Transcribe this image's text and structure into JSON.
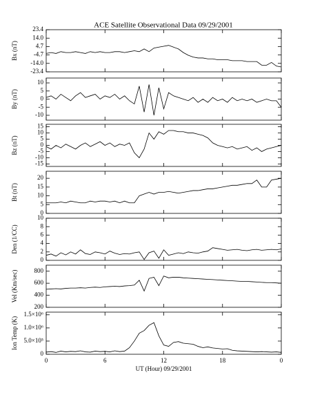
{
  "chart_data": [
    {
      "type": "line",
      "title": "ACE Satellite Observational Data   09/29/2001",
      "ylabel": "Bx (nT)",
      "color": "#000000",
      "x": [
        0,
        0.5,
        1,
        1.5,
        2,
        2.5,
        3,
        3.5,
        4,
        4.5,
        5,
        5.5,
        6,
        6.5,
        7,
        7.5,
        8,
        8.5,
        9,
        9.5,
        10,
        10.5,
        11,
        11.5,
        12,
        12.5,
        13,
        13.5,
        14,
        14.5,
        15,
        15.5,
        16,
        16.5,
        17,
        17.5,
        18,
        18.5,
        19,
        19.5,
        20,
        20.5,
        21,
        21.5,
        22,
        22.5,
        23,
        23.5,
        24
      ],
      "values": [
        -3,
        -2,
        -3,
        -1,
        -2,
        -2,
        -1,
        -2,
        -3,
        -1,
        -2,
        -1,
        -2,
        -2,
        -1,
        -1,
        -2,
        -1,
        0,
        -1,
        2,
        -1,
        3,
        4,
        5,
        6,
        4,
        2,
        -2,
        -5,
        -7,
        -8,
        -8,
        -9,
        -9,
        -10,
        -10,
        -10,
        -11,
        -11,
        -11,
        -12,
        -12,
        -12,
        -16,
        -16,
        -13,
        -17,
        -18
      ],
      "ylim": [
        -23.4,
        23.4
      ],
      "yticks": [
        23.4,
        {
          "value": 14,
          "label": "14.0"
        },
        4.7,
        -4.7,
        {
          "value": -14,
          "label": "-14.0"
        },
        -23.4
      ]
    },
    {
      "type": "line",
      "ylabel": "By (nT)",
      "color": "#000000",
      "x": [
        0,
        0.5,
        1,
        1.5,
        2,
        2.5,
        3,
        3.5,
        4,
        4.5,
        5,
        5.5,
        6,
        6.5,
        7,
        7.5,
        8,
        8.5,
        9,
        9.5,
        10,
        10.5,
        11,
        11.5,
        12,
        12.5,
        13,
        13.5,
        14,
        14.5,
        15,
        15.5,
        16,
        16.5,
        17,
        17.5,
        18,
        18.5,
        19,
        19.5,
        20,
        20.5,
        21,
        21.5,
        22,
        22.5,
        23,
        23.5,
        24
      ],
      "values": [
        1,
        2,
        0,
        3,
        1,
        -1,
        2,
        4,
        1,
        2,
        3,
        0,
        2,
        1,
        3,
        0,
        2,
        -1,
        -3,
        8,
        -8,
        9,
        -10,
        7,
        -6,
        4,
        2,
        1,
        0,
        -1,
        1,
        -2,
        0,
        -2,
        1,
        -1,
        0,
        -2,
        1,
        -1,
        0,
        -1,
        0,
        -2,
        -1,
        0,
        -1,
        -1,
        -5
      ],
      "ylim": [
        -13,
        13
      ],
      "yticks": [
        10,
        5,
        0,
        -5,
        -10
      ]
    },
    {
      "type": "line",
      "ylabel": "Bz (nT)",
      "color": "#000000",
      "x": [
        0,
        0.5,
        1,
        1.5,
        2,
        2.5,
        3,
        3.5,
        4,
        4.5,
        5,
        5.5,
        6,
        6.5,
        7,
        7.5,
        8,
        8.5,
        9,
        9.5,
        10,
        10.5,
        11,
        11.5,
        12,
        12.5,
        13,
        13.5,
        14,
        14.5,
        15,
        15.5,
        16,
        16.5,
        17,
        17.5,
        18,
        18.5,
        19,
        19.5,
        20,
        20.5,
        21,
        21.5,
        22,
        22.5,
        23,
        23.5,
        24
      ],
      "values": [
        -1,
        -3,
        0,
        -2,
        1,
        -1,
        -3,
        0,
        2,
        -1,
        1,
        3,
        0,
        2,
        -1,
        1,
        0,
        2,
        -6,
        -10,
        -3,
        10,
        5,
        11,
        9,
        12,
        12,
        11,
        11,
        10,
        10,
        9,
        8,
        6,
        2,
        0,
        -1,
        -2,
        -1,
        -3,
        -2,
        -1,
        -4,
        -2,
        -5,
        -3,
        -2,
        -1,
        0
      ],
      "ylim": [
        -17,
        17
      ],
      "yticks": [
        15,
        10,
        5,
        0,
        -5,
        -10,
        -15
      ]
    },
    {
      "type": "line",
      "ylabel": "Bt (nT)",
      "color": "#000000",
      "x": [
        0,
        0.5,
        1,
        1.5,
        2,
        2.5,
        3,
        3.5,
        4,
        4.5,
        5,
        5.5,
        6,
        6.5,
        7,
        7.5,
        8,
        8.5,
        9,
        9.5,
        10,
        10.5,
        11,
        11.5,
        12,
        12.5,
        13,
        13.5,
        14,
        14.5,
        15,
        15.5,
        16,
        16.5,
        17,
        17.5,
        18,
        18.5,
        19,
        19.5,
        20,
        20.5,
        21,
        21.5,
        22,
        22.5,
        23,
        23.5,
        24
      ],
      "values": [
        6,
        6,
        6,
        6.5,
        6,
        7,
        6.5,
        6,
        6,
        7,
        6.5,
        7,
        7,
        6.5,
        7,
        6,
        7,
        6,
        6,
        10,
        11,
        12,
        11,
        12,
        12,
        12.5,
        12,
        11.5,
        12,
        12.5,
        13,
        13,
        13.5,
        14,
        14,
        14.5,
        15,
        15.5,
        16,
        16,
        16.5,
        17,
        17,
        19,
        15,
        15,
        19,
        19.5,
        20
      ],
      "ylim": [
        0,
        24
      ],
      "yticks": [
        0,
        5,
        10,
        15,
        20
      ]
    },
    {
      "type": "line",
      "ylabel": "Den (1/CC)",
      "color": "#000000",
      "x": [
        0,
        0.5,
        1,
        1.5,
        2,
        2.5,
        3,
        3.5,
        4,
        4.5,
        5,
        5.5,
        6,
        6.5,
        7,
        7.5,
        8,
        8.5,
        9,
        9.5,
        10,
        10.5,
        11,
        11.5,
        12,
        12.5,
        13,
        13.5,
        14,
        14.5,
        15,
        15.5,
        16,
        16.5,
        17,
        17.5,
        18,
        18.5,
        19,
        19.5,
        20,
        20.5,
        21,
        21.5,
        22,
        22.5,
        23,
        23.5,
        24
      ],
      "values": [
        1.2,
        1.5,
        1,
        1.8,
        1.3,
        2,
        1.5,
        2.5,
        1.6,
        1.4,
        2,
        1.8,
        1.5,
        2.2,
        1.7,
        1.4,
        1.6,
        1.5,
        1.8,
        2,
        0.2,
        1.8,
        2.2,
        0.5,
        2.5,
        1.2,
        1.5,
        1.8,
        1.6,
        2,
        1.8,
        1.7,
        2,
        2.2,
        3,
        2.8,
        2.6,
        2.4,
        2.5,
        2.6,
        2.4,
        2.3,
        2.5,
        2.6,
        2.4,
        2.5,
        2.6,
        2.5,
        2.7
      ],
      "ylim": [
        0,
        10
      ],
      "yticks": [
        0,
        2,
        4,
        6,
        8,
        10
      ]
    },
    {
      "type": "line",
      "ylabel": "Vel (Km/sec)",
      "color": "#000000",
      "x": [
        0,
        0.5,
        1,
        1.5,
        2,
        2.5,
        3,
        3.5,
        4,
        4.5,
        5,
        5.5,
        6,
        6.5,
        7,
        7.5,
        8,
        8.5,
        9,
        9.5,
        10,
        10.5,
        11,
        11.5,
        12,
        12.5,
        13,
        13.5,
        14,
        14.5,
        15,
        15.5,
        16,
        16.5,
        17,
        17.5,
        18,
        18.5,
        19,
        19.5,
        20,
        20.5,
        21,
        21.5,
        22,
        22.5,
        23,
        23.5,
        24
      ],
      "values": [
        500,
        505,
        510,
        505,
        515,
        520,
        520,
        525,
        520,
        530,
        535,
        530,
        540,
        545,
        550,
        545,
        555,
        560,
        570,
        650,
        470,
        680,
        700,
        560,
        720,
        690,
        700,
        700,
        690,
        685,
        680,
        675,
        670,
        665,
        660,
        655,
        650,
        645,
        640,
        635,
        630,
        630,
        625,
        620,
        615,
        610,
        610,
        605,
        600
      ],
      "ylim": [
        200,
        900
      ],
      "yticks": [
        200,
        400,
        600,
        800
      ]
    },
    {
      "type": "line",
      "ylabel": "Ion Temp (K)",
      "xlabel": "UT (Hour)  09/29/2001",
      "color": "#000000",
      "x": [
        0,
        0.5,
        1,
        1.5,
        2,
        2.5,
        3,
        3.5,
        4,
        4.5,
        5,
        5.5,
        6,
        6.5,
        7,
        7.5,
        8,
        8.5,
        9,
        9.5,
        10,
        10.5,
        11,
        11.5,
        12,
        12.5,
        13,
        13.5,
        14,
        14.5,
        15,
        15.5,
        16,
        16.5,
        17,
        17.5,
        18,
        18.5,
        19,
        19.5,
        20,
        20.5,
        21,
        21.5,
        22,
        22.5,
        23,
        23.5,
        24
      ],
      "values": [
        80000,
        100000,
        70000,
        120000,
        90000,
        110000,
        100000,
        130000,
        90000,
        80000,
        120000,
        100000,
        110000,
        90000,
        130000,
        100000,
        120000,
        250000,
        500000,
        800000,
        900000,
        1100000,
        1200000,
        700000,
        350000,
        300000,
        450000,
        480000,
        420000,
        400000,
        380000,
        300000,
        250000,
        280000,
        240000,
        220000,
        200000,
        210000,
        150000,
        130000,
        120000,
        110000,
        100000,
        90000,
        100000,
        90000,
        80000,
        90000,
        70000
      ],
      "ylim": [
        0,
        1600000
      ],
      "yticks": [
        0,
        {
          "value": 500000,
          "label": "5.0×10⁵"
        },
        {
          "value": 1000000,
          "label": "1.0×10⁶"
        },
        {
          "value": 1500000,
          "label": "1.5×10⁶"
        }
      ],
      "xlim": [
        0,
        24
      ],
      "xticks": [
        0,
        6,
        12,
        18,
        {
          "value": 24,
          "label": "0"
        }
      ]
    }
  ]
}
